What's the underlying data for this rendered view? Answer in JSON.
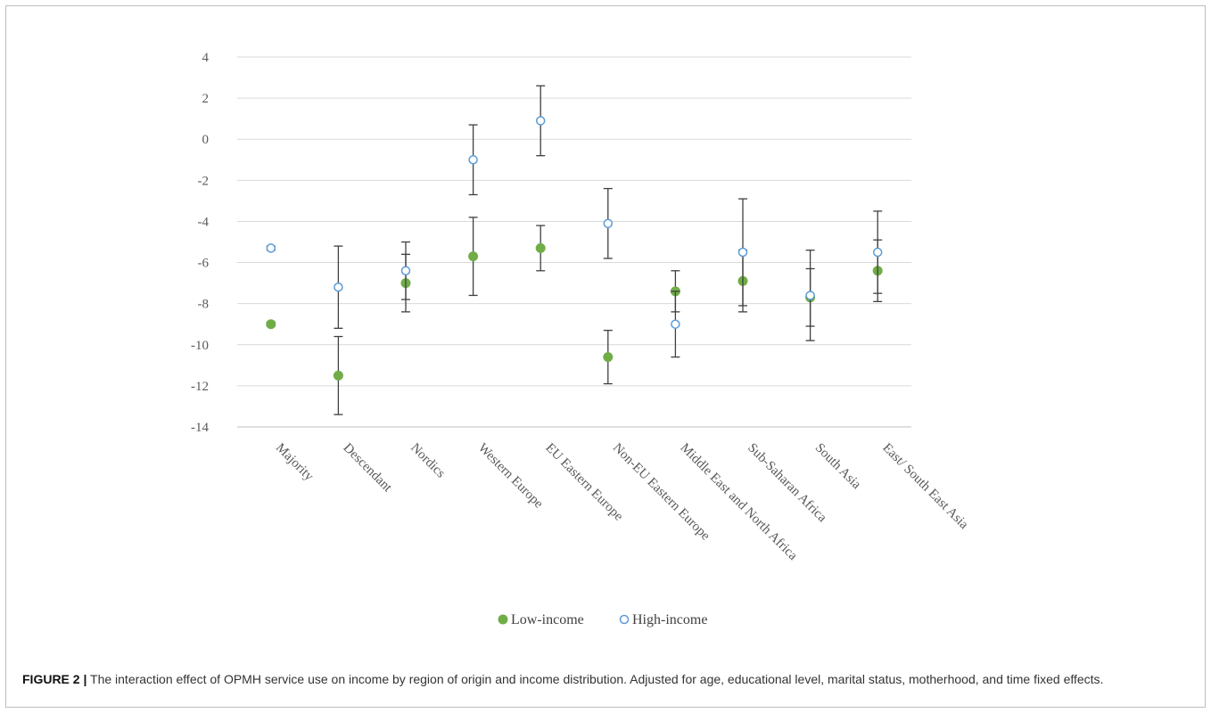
{
  "caption": {
    "label": "FIGURE 2 |",
    "text": "The interaction effect of OPMH service use on income by region of origin and income distribution. Adjusted for age, educational level, marital status, motherhood, and time fixed effects."
  },
  "chart_data": {
    "type": "scatter",
    "title": "",
    "xlabel": "",
    "ylabel": "",
    "ylim": [
      -14,
      4
    ],
    "yticks": [
      -14,
      -12,
      -10,
      -8,
      -6,
      -4,
      -2,
      0,
      2,
      4
    ],
    "grid": true,
    "legend_position": "bottom",
    "categories": [
      "Majority",
      "Descendant",
      "Nordics",
      "Western Europe",
      "EU Eastern Europe",
      "Non-EU Eastern Europe",
      "Middle East and North Africa",
      "Sub-Saharan  Africa",
      "South Asia",
      "East/ South East Asia"
    ],
    "series": [
      {
        "name": "Low-income",
        "marker": "filled-circle",
        "color": "#70ad47",
        "values": [
          -9.0,
          -11.5,
          -7.0,
          -5.7,
          -5.3,
          -10.6,
          -7.4,
          -6.9,
          -7.7,
          -6.4
        ],
        "err_low": [
          -9.1,
          -13.4,
          -8.4,
          -7.6,
          -6.4,
          -11.9,
          -8.4,
          -8.4,
          -9.8,
          -7.9
        ],
        "err_high": [
          -8.9,
          -9.6,
          -5.6,
          -3.8,
          -4.2,
          -9.3,
          -6.4,
          -5.4,
          -5.4,
          -4.9
        ]
      },
      {
        "name": "High-income",
        "marker": "open-circle",
        "color": "#5b9bd5",
        "values": [
          -5.3,
          -7.2,
          -6.4,
          -1.0,
          0.9,
          -4.1,
          -9.0,
          -5.5,
          -7.6,
          -5.5
        ],
        "err_low": [
          -5.4,
          -9.2,
          -7.8,
          -2.7,
          -0.8,
          -5.8,
          -10.6,
          -8.1,
          -9.1,
          -7.5
        ],
        "err_high": [
          -5.2,
          -5.2,
          -5.0,
          0.7,
          2.6,
          -2.4,
          -7.4,
          -2.9,
          -6.3,
          -3.5
        ]
      }
    ]
  }
}
